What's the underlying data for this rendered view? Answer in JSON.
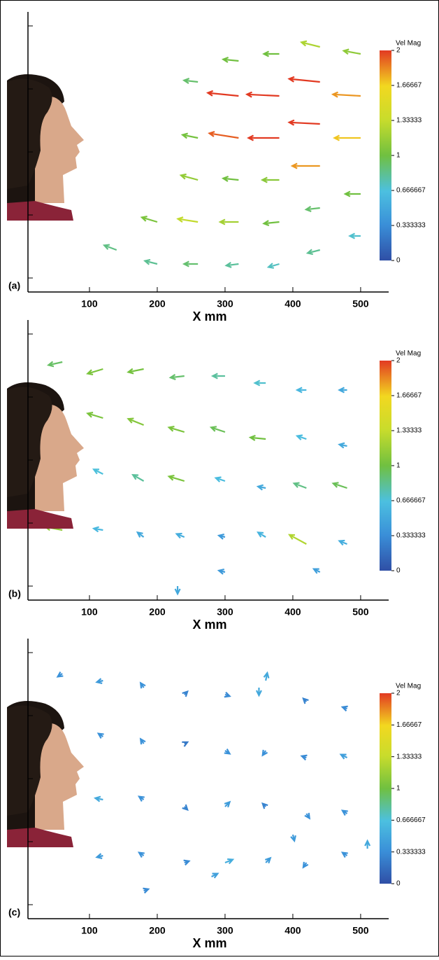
{
  "chart_data": [
    {
      "type": "quiver",
      "panel_label": "(a)",
      "x_label": "X mm",
      "xlim": [
        0,
        530
      ],
      "xticks": [
        100,
        200,
        300,
        400,
        500
      ],
      "ylim": [
        0,
        380
      ],
      "colorbar_title": "Vel Mag",
      "clim": [
        0,
        2
      ],
      "colorbar_ticks": [
        0,
        0.333333,
        0.666667,
        1,
        1.33333,
        1.66667,
        2
      ],
      "x": [
        140,
        200,
        200,
        260,
        260,
        260,
        260,
        260,
        320,
        320,
        320,
        320,
        320,
        320,
        380,
        380,
        380,
        380,
        380,
        380,
        440,
        440,
        440,
        440,
        440,
        440,
        500,
        500,
        500,
        500,
        500
      ],
      "y": [
        60,
        40,
        100,
        40,
        100,
        160,
        220,
        300,
        40,
        100,
        160,
        220,
        280,
        330,
        40,
        100,
        160,
        220,
        280,
        340,
        60,
        120,
        180,
        240,
        300,
        350,
        80,
        140,
        220,
        280,
        340
      ],
      "u": [
        -0.8,
        -0.8,
        -1.0,
        -0.9,
        -1.3,
        -1.1,
        -1.0,
        -0.9,
        -0.8,
        -1.2,
        -1.0,
        -1.9,
        -2.0,
        -1.0,
        -0.7,
        -1.0,
        -1.1,
        -2.0,
        -2.1,
        -1.0,
        -0.8,
        -0.9,
        -1.8,
        -2.0,
        -2.0,
        -1.2,
        -0.7,
        -1.0,
        -1.7,
        -1.8,
        -1.1
      ],
      "v": [
        0.3,
        0.2,
        0.3,
        0,
        0.2,
        0.3,
        0.2,
        0.1,
        -0.1,
        0,
        0.1,
        0.3,
        0.2,
        0.1,
        -0.2,
        -0.1,
        0,
        0,
        0.1,
        0,
        -0.2,
        -0.1,
        0,
        0.1,
        0.2,
        0.3,
        0,
        0,
        0,
        0.1,
        0.2
      ]
    },
    {
      "type": "quiver",
      "panel_label": "(b)",
      "x_label": "X mm",
      "xlim": [
        0,
        530
      ],
      "xticks": [
        100,
        200,
        300,
        400,
        500
      ],
      "ylim": [
        0,
        380
      ],
      "colorbar_title": "Vel Mag",
      "clim": [
        0,
        2
      ],
      "colorbar_ticks": [
        0,
        0.333333,
        0.666667,
        1,
        1.33333,
        1.66667,
        2
      ],
      "x": [
        60,
        120,
        180,
        240,
        300,
        360,
        420,
        480,
        60,
        120,
        180,
        240,
        300,
        360,
        420,
        480,
        120,
        180,
        240,
        300,
        360,
        420,
        480,
        60,
        120,
        180,
        240,
        300,
        360,
        420,
        480,
        230,
        300,
        440
      ],
      "y": [
        340,
        330,
        330,
        320,
        320,
        310,
        300,
        300,
        260,
        260,
        250,
        240,
        240,
        230,
        230,
        220,
        180,
        170,
        170,
        170,
        160,
        160,
        160,
        100,
        100,
        90,
        90,
        90,
        90,
        80,
        80,
        20,
        40,
        40
      ],
      "u": [
        -0.9,
        -1.0,
        -1.0,
        -0.9,
        -0.8,
        -0.7,
        -0.6,
        -0.5,
        -0.9,
        -1.0,
        -1.0,
        -1.0,
        -0.9,
        -1.0,
        -0.6,
        -0.5,
        -0.6,
        -0.7,
        -1.0,
        -0.6,
        -0.5,
        -0.8,
        -0.9,
        -1.1,
        -0.6,
        -0.4,
        -0.5,
        -0.4,
        -0.5,
        -1.1,
        -0.5,
        0,
        -0.4,
        -0.4
      ],
      "v": [
        -0.2,
        -0.3,
        -0.2,
        -0.1,
        0,
        0,
        0,
        0,
        0.2,
        0.3,
        0.4,
        0.3,
        0.3,
        0.1,
        0.2,
        0.1,
        0.3,
        0.4,
        0.3,
        0.2,
        0.1,
        0.3,
        0.3,
        0.2,
        0.1,
        0.3,
        0.2,
        0.1,
        0.3,
        0.6,
        0.2,
        -0.5,
        0.1,
        0.2
      ]
    },
    {
      "type": "quiver",
      "panel_label": "(c)",
      "x_label": "X mm",
      "xlim": [
        0,
        530
      ],
      "xticks": [
        100,
        200,
        300,
        400,
        500
      ],
      "ylim": [
        0,
        380
      ],
      "colorbar_title": "Vel Mag",
      "clim": [
        0,
        2
      ],
      "colorbar_ticks": [
        0,
        0.333333,
        0.666667,
        1,
        1.33333,
        1.66667,
        2
      ],
      "x": [
        60,
        120,
        180,
        240,
        300,
        360,
        420,
        480,
        120,
        180,
        240,
        300,
        360,
        420,
        480,
        120,
        180,
        240,
        300,
        360,
        420,
        480,
        120,
        180,
        240,
        300,
        360,
        420,
        480,
        180,
        280,
        350,
        400,
        510
      ],
      "y": [
        350,
        340,
        330,
        320,
        320,
        340,
        310,
        300,
        260,
        250,
        250,
        240,
        240,
        230,
        230,
        170,
        170,
        160,
        160,
        160,
        150,
        150,
        90,
        90,
        80,
        80,
        80,
        80,
        90,
        40,
        60,
        330,
        120,
        100
      ],
      "u": [
        -0.3,
        -0.4,
        -0.2,
        0.2,
        0.3,
        0.1,
        -0.2,
        -0.3,
        -0.3,
        -0.2,
        0.2,
        0.3,
        -0.2,
        -0.3,
        -0.4,
        -0.5,
        -0.3,
        0.2,
        0.3,
        -0.2,
        0.2,
        -0.3,
        -0.4,
        -0.3,
        0.3,
        0.5,
        0.3,
        -0.2,
        -0.3,
        0.3,
        0.4,
        0,
        0.1,
        0
      ],
      "v": [
        -0.2,
        -0.1,
        0.3,
        0.2,
        -0.1,
        0.5,
        0.2,
        0.1,
        0.2,
        0.3,
        0.1,
        -0.2,
        -0.3,
        0.1,
        0.2,
        0.1,
        0.2,
        -0.2,
        0.3,
        0.2,
        -0.3,
        0.2,
        -0.1,
        0.2,
        0.1,
        0.2,
        0.3,
        -0.3,
        0.2,
        0.1,
        0.2,
        -0.5,
        -0.4,
        0.5
      ]
    }
  ]
}
